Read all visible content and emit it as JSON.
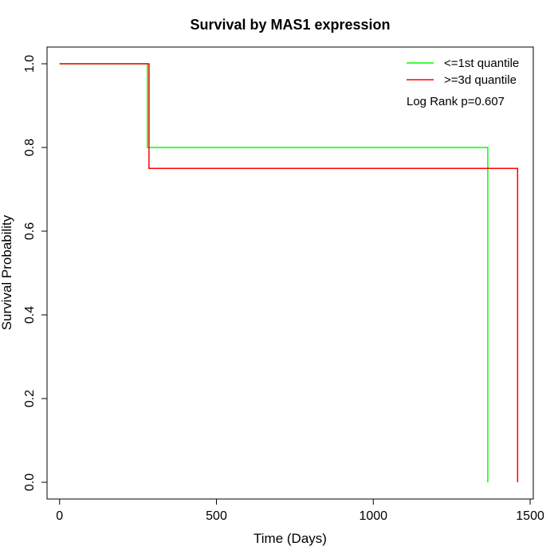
{
  "chart_data": {
    "type": "line",
    "title": "Survival by MAS1 expression",
    "xlabel": "Time (Days)",
    "ylabel": "Survival Probability",
    "xlim": [
      -40,
      1510
    ],
    "ylim": [
      -0.04,
      1.04
    ],
    "xticks": [
      0,
      500,
      1000,
      1500
    ],
    "xtick_labels": [
      "0",
      "500",
      "1000",
      "1500"
    ],
    "yticks": [
      0.0,
      0.2,
      0.4,
      0.6,
      0.8,
      1.0
    ],
    "ytick_labels": [
      "0.0",
      "0.2",
      "0.4",
      "0.6",
      "0.8",
      "1.0"
    ],
    "grid": false,
    "legend_position": "top-right",
    "annotation": "Log Rank p=0.607",
    "series": [
      {
        "name": "<=1st quantile",
        "color": "#00ff00",
        "step": true,
        "x": [
          0,
          280,
          1365,
          1365
        ],
        "y": [
          1.0,
          0.8,
          0.8,
          0.0
        ]
      },
      {
        "name": ">=3d quantile",
        "color": "#ff0000",
        "step": true,
        "x": [
          0,
          285,
          1460,
          1460
        ],
        "y": [
          1.0,
          0.75,
          0.75,
          0.0
        ]
      }
    ]
  }
}
